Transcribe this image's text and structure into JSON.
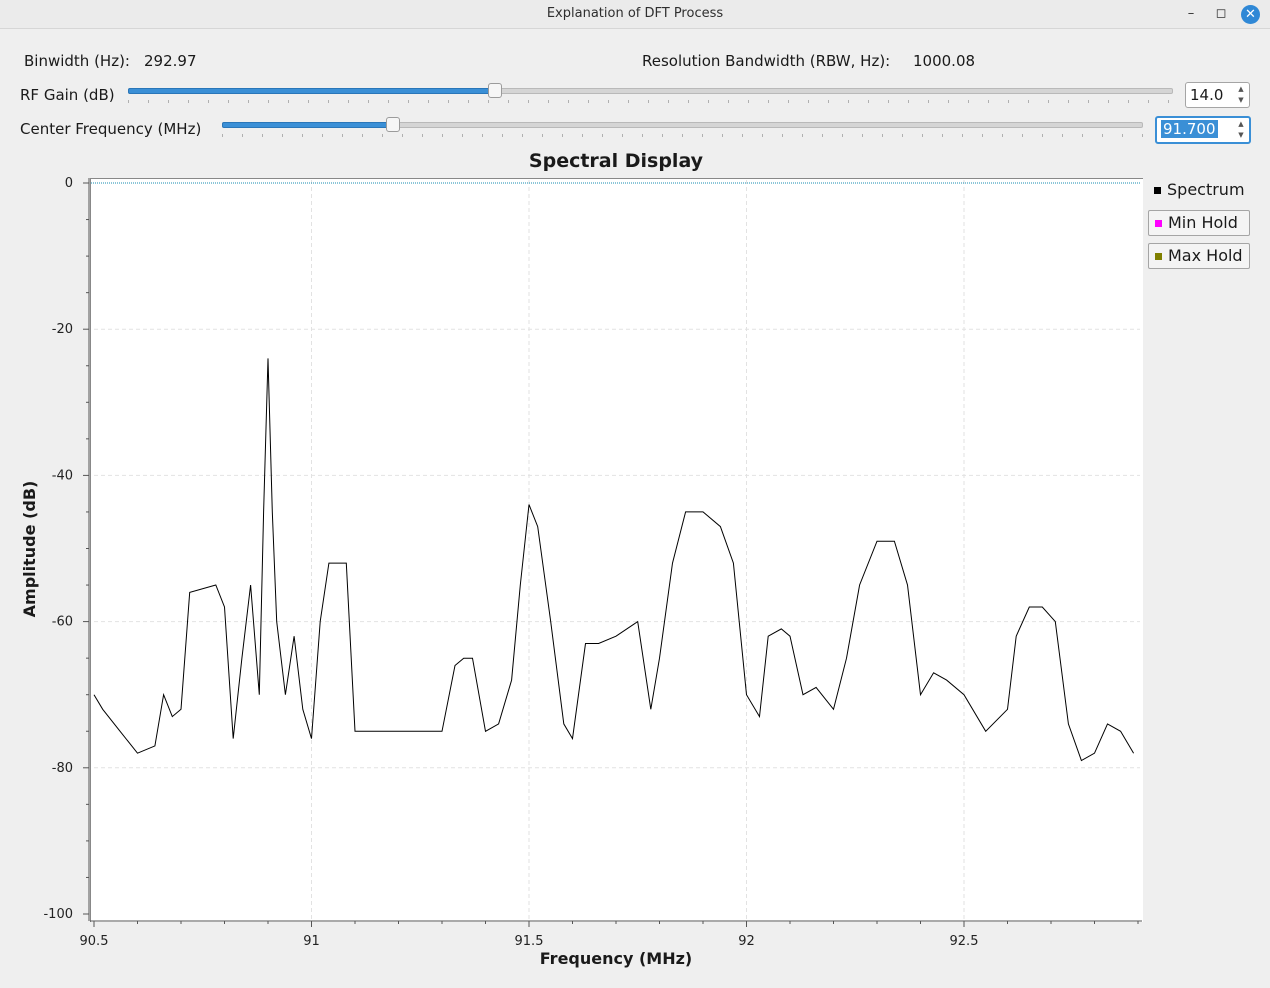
{
  "window": {
    "title": "Explanation of DFT Process"
  },
  "controls": {
    "binwidth_label": "Binwidth (Hz):",
    "binwidth_value": "292.97",
    "rbw_label": "Resolution Bandwidth (RBW, Hz):",
    "rbw_value": "1000.08",
    "rf_gain_label": "RF Gain (dB)",
    "rf_gain_value": "14.0",
    "rf_gain_fraction": 0.35,
    "center_freq_label": "Center Frequency (MHz)",
    "center_freq_value": "91.700",
    "center_freq_fraction": 0.185
  },
  "colors": {
    "accent": "#3a8fd6",
    "spectrum": "#000000",
    "min_hold": "#ff00ff",
    "max_hold": "#808000",
    "zero_line": "#1a8cb0"
  },
  "chart_data": {
    "type": "line",
    "title": "Spectral Display",
    "xlabel": "Frequency (MHz)",
    "ylabel": "Amplitude (dB)",
    "xlim": [
      90.5,
      92.9
    ],
    "ylim": [
      -100,
      0
    ],
    "xticks": [
      90.5,
      91,
      91.5,
      92,
      92.5
    ],
    "xtick_labels": [
      "90.5",
      "91",
      "91.5",
      "92",
      "92.5"
    ],
    "yticks": [
      0,
      -20,
      -40,
      -60,
      -80,
      -100
    ],
    "ytick_labels": [
      "0",
      "-20",
      "-40",
      "-60",
      "-80",
      "-100"
    ],
    "grid": true,
    "legend": [
      "Spectrum",
      "Min Hold",
      "Max Hold"
    ],
    "legend_placement": "right",
    "series": [
      {
        "name": "Spectrum",
        "x": [
          90.5,
          90.52,
          90.56,
          90.6,
          90.64,
          90.66,
          90.68,
          90.7,
          90.72,
          90.78,
          90.8,
          90.82,
          90.84,
          90.86,
          90.88,
          90.89,
          90.9,
          90.91,
          90.92,
          90.94,
          90.96,
          90.98,
          91.0,
          91.02,
          91.04,
          91.08,
          91.1,
          91.2,
          91.3,
          91.33,
          91.35,
          91.37,
          91.4,
          91.43,
          91.46,
          91.48,
          91.5,
          91.52,
          91.55,
          91.58,
          91.6,
          91.63,
          91.66,
          91.7,
          91.75,
          91.78,
          91.8,
          91.83,
          91.86,
          91.9,
          91.94,
          91.97,
          92.0,
          92.03,
          92.05,
          92.08,
          92.1,
          92.13,
          92.16,
          92.2,
          92.23,
          92.26,
          92.3,
          92.34,
          92.37,
          92.4,
          92.43,
          92.46,
          92.5,
          92.55,
          92.6,
          92.62,
          92.65,
          92.68,
          92.71,
          92.74,
          92.77,
          92.8,
          92.83,
          92.86,
          92.89
        ],
        "y": [
          -70,
          -72,
          -75,
          -78,
          -77,
          -70,
          -73,
          -72,
          -56,
          -55,
          -58,
          -76,
          -65,
          -55,
          -70,
          -45,
          -24,
          -45,
          -60,
          -70,
          -62,
          -72,
          -76,
          -60,
          -52,
          -52,
          -75,
          -75,
          -75,
          -66,
          -65,
          -65,
          -75,
          -74,
          -68,
          -55,
          -44,
          -47,
          -60,
          -74,
          -76,
          -63,
          -63,
          -62,
          -60,
          -72,
          -65,
          -52,
          -45,
          -45,
          -47,
          -52,
          -70,
          -73,
          -62,
          -61,
          -62,
          -70,
          -69,
          -72,
          -65,
          -55,
          -49,
          -49,
          -55,
          -70,
          -67,
          -68,
          -70,
          -75,
          -72,
          -62,
          -58,
          -58,
          -60,
          -74,
          -79,
          -78,
          -74,
          -75,
          -78
        ]
      },
      {
        "name": "Min Hold",
        "x": [],
        "y": []
      },
      {
        "name": "Max Hold",
        "x": [],
        "y": []
      }
    ]
  }
}
